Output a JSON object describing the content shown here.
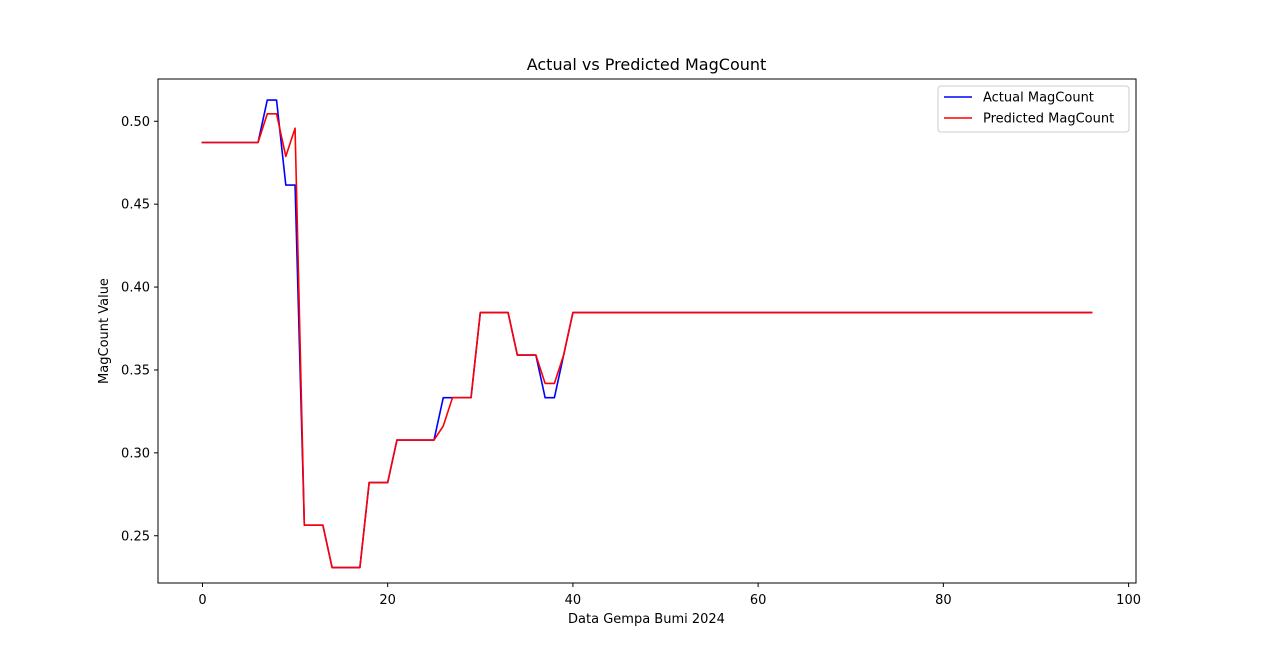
{
  "chart_data": {
    "type": "line",
    "title": "Actual vs Predicted MagCount",
    "xlabel": "Data Gempa Bumi 2024",
    "ylabel": "MagCount Value",
    "xlim": [
      -4.8,
      100.8
    ],
    "ylim": [
      0.2215,
      0.5255
    ],
    "xticks": [
      0,
      20,
      40,
      60,
      80,
      100
    ],
    "xtick_labels": [
      "0",
      "20",
      "40",
      "60",
      "80",
      "100"
    ],
    "yticks": [
      0.25,
      0.3,
      0.35,
      0.4,
      0.45,
      0.5
    ],
    "ytick_labels": [
      "0.25",
      "0.30",
      "0.35",
      "0.40",
      "0.45",
      "0.50"
    ],
    "grid": false,
    "legend_position": "top-right",
    "series": [
      {
        "name": "Actual MagCount",
        "color": "#0000ff",
        "x": [
          0,
          6,
          7,
          8,
          9,
          10,
          11,
          13,
          14,
          17,
          18,
          20,
          21,
          25,
          26,
          29,
          30,
          33,
          34,
          36,
          37,
          38,
          40,
          96
        ],
        "y": [
          0.4872,
          0.4872,
          0.5128,
          0.5128,
          0.4615,
          0.4615,
          0.2564,
          0.2564,
          0.2308,
          0.2308,
          0.2821,
          0.2821,
          0.3077,
          0.3077,
          0.3333,
          0.3333,
          0.3846,
          0.3846,
          0.359,
          0.359,
          0.3333,
          0.3333,
          0.3846,
          0.3846
        ]
      },
      {
        "name": "Predicted MagCount",
        "color": "#ff0000",
        "x": [
          0,
          6,
          7,
          8,
          9,
          10,
          11,
          13,
          14,
          17,
          18,
          20,
          21,
          25,
          26,
          27,
          29,
          30,
          33,
          34,
          36,
          37,
          38,
          39,
          40,
          96
        ],
        "y": [
          0.4872,
          0.4872,
          0.5045,
          0.5045,
          0.4788,
          0.4958,
          0.2564,
          0.2564,
          0.2308,
          0.2308,
          0.2821,
          0.2821,
          0.3077,
          0.3077,
          0.3162,
          0.3333,
          0.3333,
          0.3846,
          0.3846,
          0.359,
          0.359,
          0.3419,
          0.3419,
          0.359,
          0.3846,
          0.3846
        ]
      }
    ]
  }
}
